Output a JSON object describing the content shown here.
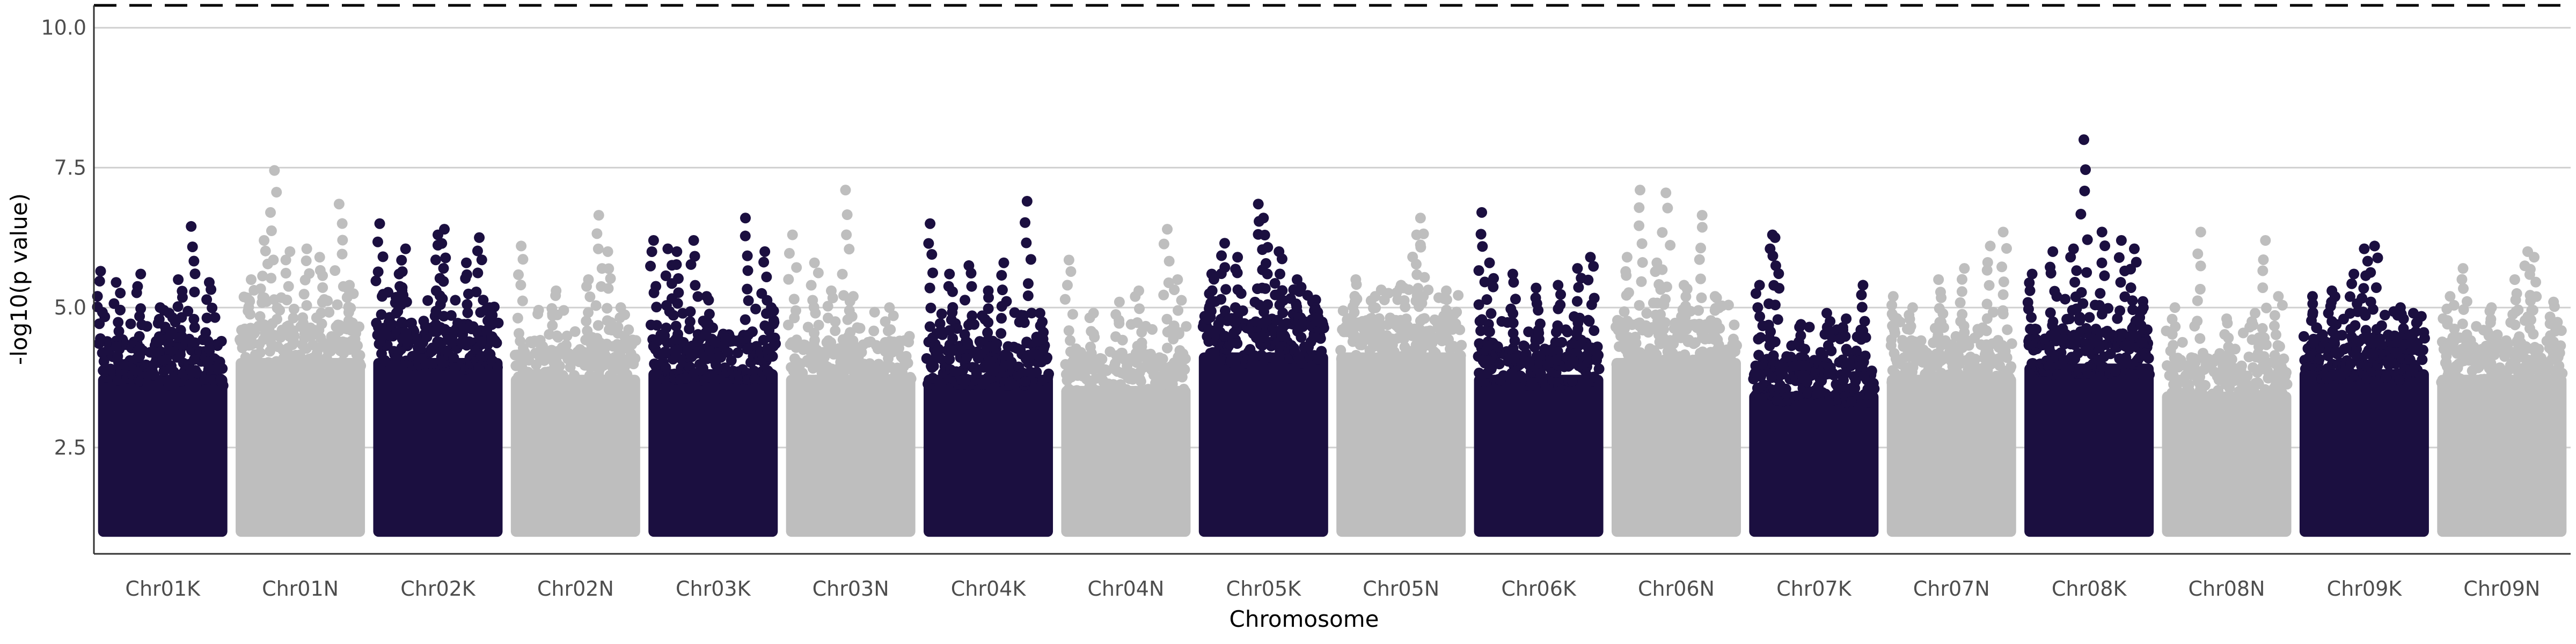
{
  "chart_data": {
    "type": "scatter",
    "subtype": "manhattan",
    "title": "",
    "xlabel": "Chromosome",
    "ylabel": "-log10(p value)",
    "ylim": [
      0.6,
      10.4
    ],
    "yticks": [
      2.5,
      5.0,
      7.5,
      10.0
    ],
    "ytick_labels": [
      "2.5",
      "5.0",
      "7.5",
      "10.0"
    ],
    "grid": "horizontal major lines",
    "legend": "none",
    "significance_threshold": 10.4,
    "threshold_line_style": "dashed",
    "point_colors": {
      "odd": "#1b0f40",
      "even": "#bebebe"
    },
    "baseline_min": 1.0,
    "categories": [
      "Chr01K",
      "Chr01N",
      "Chr02K",
      "Chr02N",
      "Chr03K",
      "Chr03N",
      "Chr04K",
      "Chr04N",
      "Chr05K",
      "Chr05N",
      "Chr06K",
      "Chr06N",
      "Chr07K",
      "Chr07N",
      "Chr08K",
      "Chr08N",
      "Chr09K",
      "Chr09N"
    ],
    "series": [
      {
        "chromosome": "Chr01K",
        "color": "#1b0f40",
        "bulk_top": 4.5,
        "outliers": [
          [
            0.02,
            5.65
          ],
          [
            0.14,
            5.45
          ],
          [
            0.33,
            5.6
          ],
          [
            0.48,
            5.0
          ],
          [
            0.62,
            5.5
          ],
          [
            0.72,
            6.45
          ],
          [
            0.86,
            5.45
          ],
          [
            0.55,
            4.9
          ]
        ]
      },
      {
        "chromosome": "Chr01N",
        "color": "#bebebe",
        "bulk_top": 4.8,
        "outliers": [
          [
            0.12,
            5.5
          ],
          [
            0.22,
            6.2
          ],
          [
            0.3,
            7.45
          ],
          [
            0.42,
            6.0
          ],
          [
            0.55,
            6.05
          ],
          [
            0.65,
            5.9
          ],
          [
            0.8,
            6.85
          ],
          [
            0.88,
            5.4
          ]
        ]
      },
      {
        "chromosome": "Chr02K",
        "color": "#1b0f40",
        "bulk_top": 4.8,
        "outliers": [
          [
            0.05,
            6.5
          ],
          [
            0.2,
            5.6
          ],
          [
            0.25,
            6.05
          ],
          [
            0.5,
            6.3
          ],
          [
            0.55,
            6.4
          ],
          [
            0.72,
            5.8
          ],
          [
            0.82,
            6.25
          ],
          [
            0.9,
            5.0
          ]
        ]
      },
      {
        "chromosome": "Chr02N",
        "color": "#bebebe",
        "bulk_top": 4.5,
        "outliers": [
          [
            0.08,
            6.1
          ],
          [
            0.35,
            5.3
          ],
          [
            0.6,
            5.5
          ],
          [
            0.68,
            6.65
          ],
          [
            0.75,
            6.0
          ],
          [
            0.85,
            5.0
          ]
        ]
      },
      {
        "chromosome": "Chr03K",
        "color": "#1b0f40",
        "bulk_top": 4.6,
        "outliers": [
          [
            0.04,
            6.2
          ],
          [
            0.15,
            6.05
          ],
          [
            0.22,
            6.0
          ],
          [
            0.35,
            6.2
          ],
          [
            0.45,
            5.2
          ],
          [
            0.75,
            6.6
          ],
          [
            0.9,
            6.0
          ],
          [
            0.95,
            5.0
          ]
        ]
      },
      {
        "chromosome": "Chr03N",
        "color": "#bebebe",
        "bulk_top": 4.5,
        "outliers": [
          [
            0.05,
            6.3
          ],
          [
            0.22,
            5.8
          ],
          [
            0.35,
            5.3
          ],
          [
            0.46,
            7.1
          ],
          [
            0.52,
            5.2
          ],
          [
            0.8,
            5.0
          ]
        ]
      },
      {
        "chromosome": "Chr04K",
        "color": "#1b0f40",
        "bulk_top": 4.5,
        "outliers": [
          [
            0.05,
            6.5
          ],
          [
            0.2,
            5.6
          ],
          [
            0.35,
            5.75
          ],
          [
            0.5,
            5.3
          ],
          [
            0.62,
            5.8
          ],
          [
            0.8,
            6.9
          ],
          [
            0.9,
            4.9
          ]
        ]
      },
      {
        "chromosome": "Chr04N",
        "color": "#bebebe",
        "bulk_top": 4.3,
        "outliers": [
          [
            0.06,
            5.85
          ],
          [
            0.25,
            4.9
          ],
          [
            0.45,
            5.1
          ],
          [
            0.6,
            5.3
          ],
          [
            0.82,
            6.4
          ],
          [
            0.9,
            5.5
          ]
        ]
      },
      {
        "chromosome": "Chr05K",
        "color": "#1b0f40",
        "bulk_top": 4.9,
        "outliers": [
          [
            0.1,
            5.6
          ],
          [
            0.2,
            6.15
          ],
          [
            0.3,
            5.9
          ],
          [
            0.46,
            6.85
          ],
          [
            0.5,
            6.6
          ],
          [
            0.62,
            6.0
          ],
          [
            0.76,
            5.5
          ],
          [
            0.9,
            5.0
          ]
        ]
      },
      {
        "chromosome": "Chr05N",
        "color": "#bebebe",
        "bulk_top": 4.9,
        "outliers": [
          [
            0.15,
            5.5
          ],
          [
            0.3,
            5.2
          ],
          [
            0.5,
            5.4
          ],
          [
            0.62,
            6.3
          ],
          [
            0.65,
            6.6
          ],
          [
            0.85,
            5.3
          ]
        ]
      },
      {
        "chromosome": "Chr06K",
        "color": "#1b0f40",
        "bulk_top": 4.5,
        "outliers": [
          [
            0.06,
            6.7
          ],
          [
            0.12,
            5.8
          ],
          [
            0.3,
            5.6
          ],
          [
            0.48,
            5.35
          ],
          [
            0.65,
            5.4
          ],
          [
            0.8,
            5.7
          ],
          [
            0.9,
            5.9
          ]
        ]
      },
      {
        "chromosome": "Chr06N",
        "color": "#bebebe",
        "bulk_top": 4.8,
        "outliers": [
          [
            0.12,
            5.9
          ],
          [
            0.22,
            7.1
          ],
          [
            0.35,
            5.8
          ],
          [
            0.42,
            7.05
          ],
          [
            0.56,
            5.4
          ],
          [
            0.7,
            6.65
          ],
          [
            0.8,
            5.2
          ]
        ]
      },
      {
        "chromosome": "Chr07K",
        "color": "#1b0f40",
        "bulk_top": 4.2,
        "outliers": [
          [
            0.08,
            5.4
          ],
          [
            0.18,
            6.3
          ],
          [
            0.2,
            6.25
          ],
          [
            0.4,
            4.7
          ],
          [
            0.6,
            4.9
          ],
          [
            0.75,
            4.8
          ],
          [
            0.88,
            5.4
          ]
        ]
      },
      {
        "chromosome": "Chr07N",
        "color": "#bebebe",
        "bulk_top": 4.5,
        "outliers": [
          [
            0.05,
            5.2
          ],
          [
            0.2,
            5.0
          ],
          [
            0.4,
            5.5
          ],
          [
            0.6,
            5.7
          ],
          [
            0.8,
            6.1
          ],
          [
            0.9,
            6.35
          ]
        ]
      },
      {
        "chromosome": "Chr08K",
        "color": "#1b0f40",
        "bulk_top": 4.7,
        "outliers": [
          [
            0.06,
            5.6
          ],
          [
            0.22,
            6.0
          ],
          [
            0.38,
            6.05
          ],
          [
            0.46,
            8.0
          ],
          [
            0.6,
            6.35
          ],
          [
            0.75,
            6.2
          ],
          [
            0.85,
            6.05
          ],
          [
            0.92,
            5.0
          ]
        ]
      },
      {
        "chromosome": "Chr08N",
        "color": "#bebebe",
        "bulk_top": 4.2,
        "outliers": [
          [
            0.1,
            5.0
          ],
          [
            0.3,
            6.35
          ],
          [
            0.5,
            4.8
          ],
          [
            0.72,
            4.9
          ],
          [
            0.8,
            6.2
          ],
          [
            0.9,
            5.2
          ]
        ]
      },
      {
        "chromosome": "Chr09K",
        "color": "#1b0f40",
        "bulk_top": 4.6,
        "outliers": [
          [
            0.1,
            5.2
          ],
          [
            0.25,
            5.3
          ],
          [
            0.42,
            5.6
          ],
          [
            0.5,
            6.05
          ],
          [
            0.58,
            6.1
          ],
          [
            0.78,
            5.0
          ],
          [
            0.88,
            4.9
          ]
        ]
      },
      {
        "chromosome": "Chr09N",
        "color": "#bebebe",
        "bulk_top": 4.5,
        "outliers": [
          [
            0.1,
            5.2
          ],
          [
            0.2,
            5.7
          ],
          [
            0.42,
            5.0
          ],
          [
            0.6,
            5.5
          ],
          [
            0.7,
            6.0
          ],
          [
            0.75,
            5.9
          ],
          [
            0.9,
            5.1
          ]
        ]
      }
    ]
  }
}
